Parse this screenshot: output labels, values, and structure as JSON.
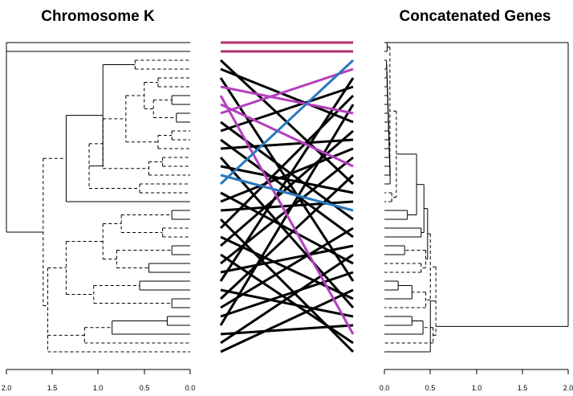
{
  "left_panel": {
    "title": "Chromosome K",
    "axis_ticks": [
      "2.0",
      "1.5",
      "1.0",
      "0.5",
      "0.0"
    ]
  },
  "right_panel": {
    "title": "Concatenated Genes",
    "axis_ticks": [
      "0.0",
      "0.5",
      "1.0",
      "1.5",
      "2.0"
    ]
  },
  "colors": {
    "dendrogram_branch": "#000000",
    "connector_default": "#000000",
    "connector_highlight_1": "#b2306f",
    "connector_highlight_2": "#b43fbe",
    "connector_highlight_3": "#2878be"
  },
  "leaf_count": 36
}
